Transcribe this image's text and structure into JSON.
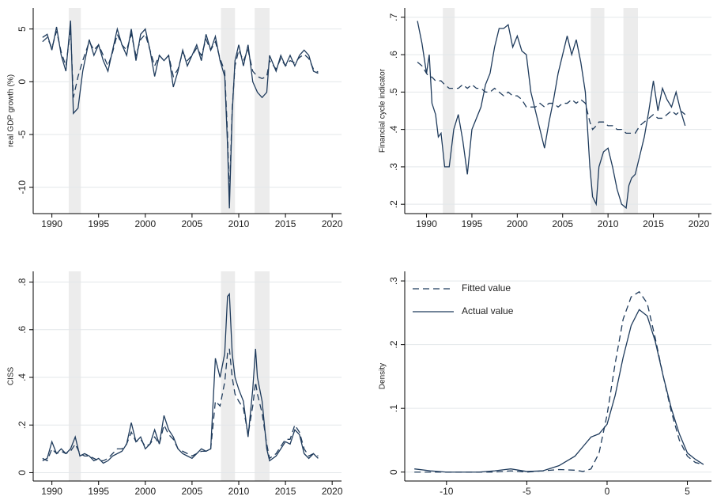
{
  "chart_data": [
    {
      "type": "line",
      "y_label": "real GDP growth (%)",
      "grid": true,
      "xlim": [
        1988,
        2021
      ],
      "xticks": [
        1990,
        1995,
        2000,
        2005,
        2010,
        2015,
        2020
      ],
      "ylim": [
        -12.5,
        7
      ],
      "yticks": [
        5,
        0,
        -5,
        -10
      ],
      "shaded_ranges": [
        [
          1991.8,
          1993.1
        ],
        [
          2008.1,
          2009.6
        ],
        [
          2011.7,
          2013.3
        ]
      ],
      "x": [
        1989,
        1989.5,
        1990,
        1990.5,
        1991,
        1991.5,
        1992,
        1992.3,
        1992.8,
        1993.3,
        1994,
        1994.5,
        1995,
        1995.5,
        1996,
        1996.5,
        1997,
        1997.5,
        1998,
        1998.5,
        1999,
        1999.5,
        2000,
        2000.5,
        2001,
        2001.5,
        2002,
        2002.5,
        2003,
        2003.5,
        2004,
        2004.5,
        2005,
        2005.5,
        2006,
        2006.5,
        2007,
        2007.5,
        2008,
        2008.5,
        2008.8,
        2009,
        2009.3,
        2009.6,
        2010,
        2010.5,
        2011,
        2011.5,
        2012,
        2012.5,
        2013,
        2013.3,
        2014,
        2014.5,
        2015,
        2015.5,
        2016,
        2016.5,
        2017,
        2017.5,
        2018,
        2018.5
      ],
      "series": [
        {
          "color": "#1f3b5c",
          "dash": true,
          "values": [
            3.8,
            4.2,
            3.2,
            4.8,
            2.8,
            1.5,
            5.0,
            -1.5,
            0.5,
            2.0,
            3.8,
            3.0,
            3.5,
            2.5,
            1.5,
            2.8,
            4.5,
            3.5,
            3.0,
            4.5,
            2.5,
            4.0,
            4.5,
            3.0,
            1.5,
            2.5,
            2.0,
            2.5,
            0.5,
            1.2,
            2.8,
            2.0,
            2.5,
            3.2,
            2.5,
            4.0,
            3.0,
            3.8,
            2.2,
            1.0,
            -5.0,
            -11.0,
            -2.5,
            1.5,
            3.0,
            2.0,
            3.0,
            1.0,
            0.5,
            0.3,
            0.5,
            2.0,
            1.2,
            2.2,
            1.5,
            2.0,
            1.8,
            2.3,
            2.6,
            2.2,
            1.2,
            0.9
          ]
        },
        {
          "color": "#1f3b5c",
          "dash": false,
          "values": [
            4.2,
            4.5,
            3.0,
            5.2,
            2.5,
            1.0,
            5.8,
            -3.0,
            -2.5,
            1.0,
            4.0,
            2.5,
            3.5,
            2.0,
            1.0,
            3.0,
            5.0,
            3.5,
            2.5,
            5.0,
            2.0,
            4.5,
            5.0,
            3.0,
            0.5,
            2.5,
            2.0,
            2.5,
            -0.5,
            1.0,
            3.0,
            1.5,
            2.5,
            3.5,
            2.0,
            4.5,
            3.0,
            4.3,
            2.0,
            0.5,
            -6.0,
            -12.0,
            -3.0,
            2.0,
            3.5,
            1.5,
            3.5,
            0.0,
            -1.0,
            -1.5,
            -1.0,
            2.5,
            1.0,
            2.5,
            1.5,
            2.5,
            1.5,
            2.5,
            3.0,
            2.5,
            1.0,
            0.8
          ]
        }
      ]
    },
    {
      "type": "line",
      "y_label": "Financial cycle indicator",
      "grid": true,
      "xlim": [
        1987.6,
        2021.4
      ],
      "xticks": [
        1990,
        1995,
        2000,
        2005,
        2010,
        2015,
        2020
      ],
      "ylim": [
        0.175,
        0.725
      ],
      "yticks": [
        {
          "value": 0.7,
          "label": ".7"
        },
        {
          "value": 0.6,
          "label": ".6"
        },
        {
          "value": 0.5,
          "label": ".5"
        },
        {
          "value": 0.4,
          "label": ".4"
        },
        {
          "value": 0.3,
          "label": ".3"
        },
        {
          "value": 0.2,
          "label": ".2"
        }
      ],
      "shaded_ranges": [
        [
          1991.8,
          1993.1
        ],
        [
          2008.1,
          2009.6
        ],
        [
          2011.7,
          2013.3
        ]
      ],
      "x": [
        1989,
        1989.5,
        1990,
        1990.3,
        1990.6,
        1991,
        1991.3,
        1991.6,
        1992,
        1992.5,
        1993,
        1993.5,
        1994,
        1994.5,
        1995,
        1995.5,
        1996,
        1996.5,
        1997,
        1997.5,
        1998,
        1998.5,
        1999,
        1999.5,
        2000,
        2000.5,
        2001,
        2001.5,
        2002,
        2002.5,
        2003,
        2003.5,
        2004,
        2004.5,
        2005,
        2005.5,
        2006,
        2006.5,
        2007,
        2007.5,
        2008,
        2008.3,
        2008.7,
        2009,
        2009.5,
        2010,
        2010.5,
        2011,
        2011.5,
        2012,
        2012.3,
        2012.6,
        2013,
        2013.5,
        2014,
        2014.5,
        2015,
        2015.5,
        2016,
        2016.5,
        2017,
        2017.5,
        2018,
        2018.5
      ],
      "series": [
        {
          "color": "#1f3b5c",
          "dash": true,
          "values": [
            0.58,
            0.57,
            0.55,
            0.54,
            0.54,
            0.53,
            0.53,
            0.53,
            0.52,
            0.51,
            0.51,
            0.51,
            0.52,
            0.51,
            0.52,
            0.51,
            0.51,
            0.5,
            0.5,
            0.51,
            0.5,
            0.49,
            0.5,
            0.49,
            0.49,
            0.48,
            0.46,
            0.46,
            0.46,
            0.47,
            0.46,
            0.47,
            0.47,
            0.46,
            0.47,
            0.47,
            0.48,
            0.47,
            0.48,
            0.47,
            0.42,
            0.4,
            0.41,
            0.42,
            0.42,
            0.41,
            0.41,
            0.4,
            0.4,
            0.39,
            0.39,
            0.39,
            0.39,
            0.41,
            0.42,
            0.43,
            0.44,
            0.43,
            0.43,
            0.44,
            0.45,
            0.44,
            0.45,
            0.44
          ]
        },
        {
          "color": "#1f3b5c",
          "dash": false,
          "values": [
            0.69,
            0.63,
            0.55,
            0.6,
            0.47,
            0.44,
            0.38,
            0.39,
            0.3,
            0.3,
            0.4,
            0.44,
            0.37,
            0.28,
            0.4,
            0.43,
            0.46,
            0.52,
            0.55,
            0.62,
            0.67,
            0.67,
            0.68,
            0.62,
            0.65,
            0.61,
            0.6,
            0.5,
            0.45,
            0.4,
            0.35,
            0.42,
            0.48,
            0.55,
            0.6,
            0.65,
            0.6,
            0.64,
            0.58,
            0.5,
            0.3,
            0.22,
            0.2,
            0.3,
            0.34,
            0.35,
            0.3,
            0.24,
            0.2,
            0.19,
            0.25,
            0.27,
            0.28,
            0.33,
            0.38,
            0.45,
            0.53,
            0.45,
            0.51,
            0.48,
            0.46,
            0.5,
            0.45,
            0.41
          ]
        }
      ]
    },
    {
      "type": "line",
      "y_label": "CISS",
      "grid": true,
      "xlim": [
        1988,
        2021
      ],
      "xticks": [
        1990,
        1995,
        2000,
        2005,
        2010,
        2015,
        2020
      ],
      "ylim": [
        -0.035,
        0.845
      ],
      "yticks": [
        0,
        {
          "value": 0.2,
          "label": ".2"
        },
        {
          "value": 0.4,
          "label": ".4"
        },
        {
          "value": 0.6,
          "label": ".6"
        },
        {
          "value": 0.8,
          "label": ".8"
        }
      ],
      "shaded_ranges": [
        [
          1991.8,
          1993.1
        ],
        [
          2008.1,
          2009.6
        ],
        [
          2011.7,
          2013.3
        ]
      ],
      "x": [
        1989,
        1989.5,
        1990,
        1990.5,
        1991,
        1991.5,
        1992,
        1992.5,
        1993,
        1993.5,
        1994,
        1994.5,
        1995,
        1995.5,
        1996,
        1996.5,
        1997,
        1997.5,
        1998,
        1998.5,
        1999,
        1999.5,
        2000,
        2000.5,
        2001,
        2001.5,
        2002,
        2002.5,
        2003,
        2003.5,
        2004,
        2004.5,
        2005,
        2005.5,
        2006,
        2006.5,
        2007,
        2007.5,
        2008,
        2008.5,
        2008.8,
        2009,
        2009.3,
        2009.6,
        2010,
        2010.5,
        2011,
        2011.5,
        2011.8,
        2012,
        2012.5,
        2013,
        2013.3,
        2014,
        2014.5,
        2015,
        2015.5,
        2016,
        2016.5,
        2017,
        2017.5,
        2018,
        2018.5
      ],
      "series": [
        {
          "color": "#1f3b5c",
          "dash": true,
          "values": [
            0.06,
            0.05,
            0.1,
            0.08,
            0.09,
            0.08,
            0.09,
            0.12,
            0.08,
            0.07,
            0.07,
            0.06,
            0.05,
            0.05,
            0.06,
            0.08,
            0.1,
            0.1,
            0.12,
            0.17,
            0.13,
            0.14,
            0.11,
            0.12,
            0.15,
            0.12,
            0.2,
            0.16,
            0.14,
            0.1,
            0.09,
            0.08,
            0.07,
            0.08,
            0.09,
            0.09,
            0.1,
            0.3,
            0.28,
            0.38,
            0.5,
            0.52,
            0.4,
            0.33,
            0.3,
            0.27,
            0.16,
            0.28,
            0.38,
            0.33,
            0.25,
            0.12,
            0.06,
            0.08,
            0.11,
            0.14,
            0.14,
            0.2,
            0.17,
            0.1,
            0.07,
            0.08,
            0.07
          ]
        },
        {
          "color": "#1f3b5c",
          "dash": false,
          "values": [
            0.05,
            0.06,
            0.13,
            0.08,
            0.1,
            0.08,
            0.1,
            0.15,
            0.07,
            0.08,
            0.07,
            0.05,
            0.06,
            0.04,
            0.05,
            0.07,
            0.08,
            0.09,
            0.12,
            0.21,
            0.13,
            0.15,
            0.1,
            0.12,
            0.18,
            0.12,
            0.24,
            0.18,
            0.15,
            0.1,
            0.08,
            0.07,
            0.06,
            0.08,
            0.1,
            0.09,
            0.1,
            0.48,
            0.4,
            0.5,
            0.74,
            0.75,
            0.5,
            0.4,
            0.35,
            0.3,
            0.15,
            0.35,
            0.52,
            0.4,
            0.3,
            0.1,
            0.05,
            0.07,
            0.1,
            0.13,
            0.12,
            0.18,
            0.16,
            0.08,
            0.06,
            0.08,
            0.06
          ]
        }
      ]
    },
    {
      "type": "line",
      "y_label": "Density",
      "grid": true,
      "legend": "top-left",
      "xlim": [
        -12.6,
        6.5
      ],
      "xticks": [
        -10,
        -5,
        0,
        5
      ],
      "ylim": [
        -0.014,
        0.315
      ],
      "yticks": [
        0,
        {
          "value": 0.1,
          "label": ".1"
        },
        {
          "value": 0.2,
          "label": ".2"
        },
        {
          "value": 0.3,
          "label": ".3"
        }
      ],
      "x": [
        -12,
        -11,
        -10,
        -9,
        -8,
        -7,
        -6,
        -5,
        -4,
        -3,
        -2,
        -1.5,
        -1,
        -0.5,
        0,
        0.5,
        1,
        1.5,
        2,
        2.5,
        3,
        3.5,
        4,
        4.5,
        5,
        5.5,
        6
      ],
      "series": [
        {
          "name": "Fitted value",
          "color": "#1f3b5c",
          "dash": true,
          "values": [
            0,
            0,
            0,
            0,
            0,
            0,
            0.002,
            0,
            0.002,
            0.004,
            0.003,
            0.001,
            0.005,
            0.03,
            0.09,
            0.17,
            0.24,
            0.275,
            0.283,
            0.265,
            0.21,
            0.15,
            0.095,
            0.05,
            0.025,
            0.015,
            0.012
          ]
        },
        {
          "name": "Actual value",
          "color": "#1f3b5c",
          "dash": false,
          "values": [
            0.005,
            0.002,
            0,
            0,
            0,
            0.002,
            0.005,
            0.001,
            0.002,
            0.01,
            0.025,
            0.04,
            0.055,
            0.06,
            0.075,
            0.12,
            0.18,
            0.23,
            0.255,
            0.245,
            0.205,
            0.15,
            0.1,
            0.06,
            0.03,
            0.02,
            0.012
          ]
        }
      ]
    }
  ]
}
